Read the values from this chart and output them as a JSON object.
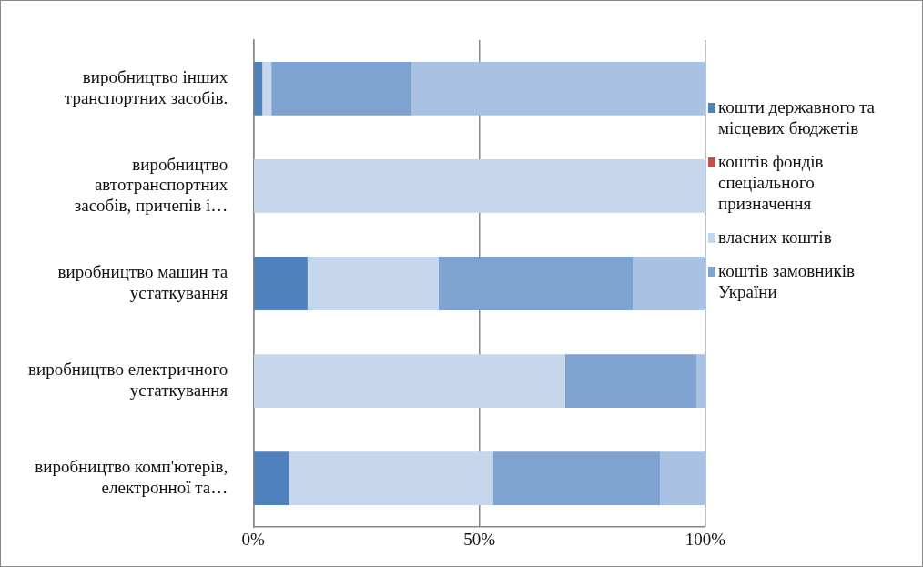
{
  "chart_data": {
    "type": "bar",
    "orientation": "horizontal",
    "stacked": true,
    "categories": [
      "виробництво інших транспортних засобів.",
      "виробництво автотранспортних засобів, причепів і…",
      "виробництво машин та устаткування",
      "виробництво електричного устаткування",
      "виробництво комп'ютерів, електронної та…"
    ],
    "series": [
      {
        "name": "кошти державного та місцевих бюджетів",
        "color": "#4f81bd",
        "values": [
          2,
          0,
          12,
          0,
          8
        ]
      },
      {
        "name": "коштів фондів спеціального призначення",
        "color": "#c0504d",
        "values": [
          0,
          0,
          0,
          0,
          0
        ]
      },
      {
        "name": "власних коштів",
        "color": "#c6d6ec",
        "values": [
          2,
          100,
          29,
          69,
          45
        ]
      },
      {
        "name": "коштів замовників України",
        "color": "#7fa3d1",
        "values": [
          31,
          0,
          43,
          29,
          37
        ]
      },
      {
        "color": "#a9c2e3",
        "values": [
          65,
          0,
          16,
          2,
          10
        ]
      }
    ],
    "xlim": [
      0,
      100
    ],
    "xticks": [
      {
        "value": 0,
        "label": "0%"
      },
      {
        "value": 50,
        "label": "50%"
      },
      {
        "value": 100,
        "label": "100%"
      }
    ],
    "grid": "x",
    "legend": "right"
  }
}
